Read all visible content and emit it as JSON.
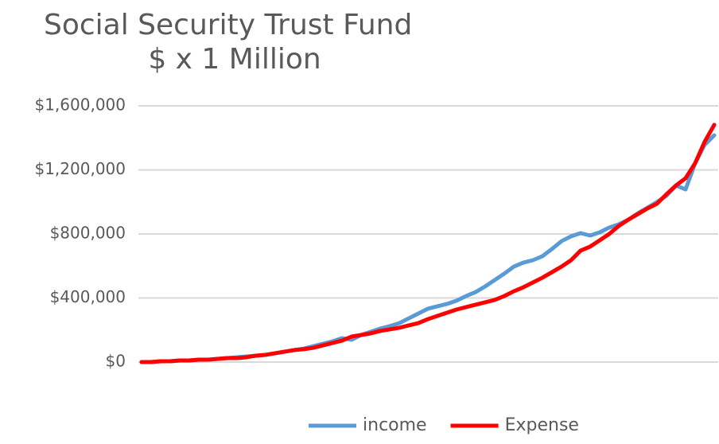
{
  "chart_data": {
    "type": "line",
    "title": "Social Security Trust Fund",
    "subtitle": "$ x 1 Million",
    "ylim": [
      0,
      1600000
    ],
    "yticks": [
      {
        "value": 0,
        "label": "$0"
      },
      {
        "value": 400000,
        "label": "$400,000"
      },
      {
        "value": 800000,
        "label": "$800,000"
      },
      {
        "value": 1200000,
        "label": "$1,200,000"
      },
      {
        "value": 1600000,
        "label": "$1,600,000"
      }
    ],
    "grid": true,
    "legend": "bottom",
    "series": [
      {
        "name": "income",
        "color": "#5b9bd5",
        "values": [
          0,
          0,
          5000,
          5000,
          10000,
          10000,
          15000,
          15000,
          20000,
          25000,
          30000,
          35000,
          40000,
          45000,
          55000,
          65000,
          75000,
          84000,
          99000,
          114000,
          129000,
          149000,
          139000,
          169000,
          189000,
          209000,
          224000,
          243000,
          273000,
          303000,
          333000,
          348000,
          363000,
          383000,
          412000,
          437000,
          472000,
          512000,
          552000,
          596000,
          621000,
          636000,
          661000,
          706000,
          755000,
          785000,
          805000,
          790000,
          810000,
          840000,
          860000,
          889000,
          929000,
          964000,
          999000,
          1039000,
          1103000,
          1078000,
          1242000,
          1357000,
          1416000
        ]
      },
      {
        "name": "Expense",
        "color": "#ff0000",
        "values": [
          0,
          0,
          5000,
          5000,
          10000,
          10000,
          15000,
          15000,
          20000,
          25000,
          25000,
          30000,
          40000,
          45000,
          55000,
          65000,
          75000,
          80000,
          89000,
          104000,
          119000,
          134000,
          159000,
          169000,
          179000,
          194000,
          204000,
          214000,
          229000,
          243000,
          268000,
          288000,
          308000,
          328000,
          343000,
          358000,
          373000,
          388000,
          412000,
          442000,
          467000,
          497000,
          527000,
          561000,
          596000,
          636000,
          696000,
          721000,
          760000,
          800000,
          850000,
          889000,
          924000,
          959000,
          989000,
          1048000,
          1103000,
          1148000,
          1242000,
          1376000,
          1481000
        ]
      }
    ]
  }
}
